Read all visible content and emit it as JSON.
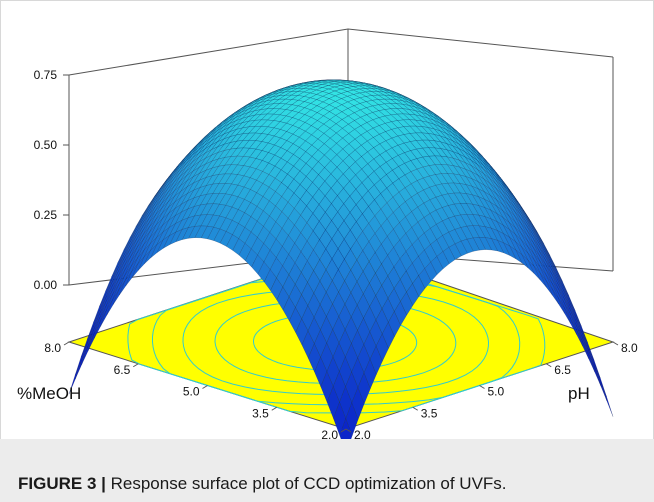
{
  "caption": {
    "label": "FIGURE 3 |",
    "text": "Response surface plot of CCD optimization of UVFs."
  },
  "chart_data": {
    "type": "surface3d",
    "title": "",
    "zlabel": "",
    "x_axis": {
      "label": "%MeOH",
      "ticks": [
        "2.0",
        "3.5",
        "5.0",
        "6.5",
        "8.0"
      ],
      "range": [
        2.0,
        8.0
      ]
    },
    "y_axis": {
      "label": "pH",
      "ticks": [
        "2.0",
        "3.5",
        "5.0",
        "6.5",
        "8.0"
      ],
      "range": [
        2.0,
        8.0
      ]
    },
    "z_axis": {
      "ticks": [
        "0.00",
        "0.25",
        "0.50",
        "0.75"
      ],
      "range": [
        0.0,
        0.75
      ]
    },
    "surface": {
      "description": "quadratic response surface, maximum near center",
      "center_meoh": 5.0,
      "center_ph": 5.0,
      "z_max": 0.7,
      "z_at_corner_meoh8_ph2": 0.04,
      "z_at_corner_meoh2_ph8": 0.08,
      "z_at_corner_meoh2_ph2": -0.25,
      "z_at_corner_meoh8_ph8": 0.5
    },
    "colors": {
      "floor": "#ffff00",
      "contour": "#33cccc",
      "surface_low": "#0a1fc8",
      "surface_high": "#35f0e6",
      "mesh": "#0b1d4a",
      "box": "#555555"
    }
  }
}
